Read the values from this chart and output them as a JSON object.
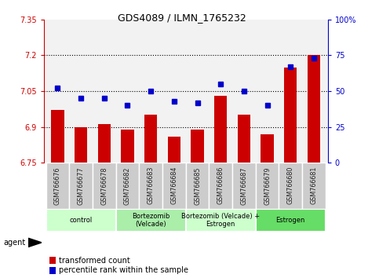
{
  "title": "GDS4089 / ILMN_1765232",
  "samples": [
    "GSM766676",
    "GSM766677",
    "GSM766678",
    "GSM766682",
    "GSM766683",
    "GSM766684",
    "GSM766685",
    "GSM766686",
    "GSM766687",
    "GSM766679",
    "GSM766680",
    "GSM766681"
  ],
  "bar_values": [
    6.97,
    6.9,
    6.91,
    6.89,
    6.95,
    6.86,
    6.89,
    7.03,
    6.95,
    6.87,
    7.15,
    7.2
  ],
  "dot_values": [
    52,
    45,
    45,
    40,
    50,
    43,
    42,
    55,
    50,
    40,
    67,
    73
  ],
  "ylim_left": [
    6.75,
    7.35
  ],
  "ylim_right": [
    0,
    100
  ],
  "yticks_left": [
    6.75,
    6.9,
    7.05,
    7.2,
    7.35
  ],
  "ytick_labels_left": [
    "6.75",
    "6.9",
    "7.05",
    "7.2",
    "7.35"
  ],
  "yticks_right": [
    0,
    25,
    50,
    75,
    100
  ],
  "ytick_labels_right": [
    "0",
    "25",
    "50",
    "75",
    "100%"
  ],
  "hlines": [
    6.9,
    7.05,
    7.2
  ],
  "bar_color": "#cc0000",
  "dot_color": "#0000cc",
  "groups": [
    {
      "label": "control",
      "start": 0,
      "end": 3,
      "color": "#ccffcc"
    },
    {
      "label": "Bortezomib\n(Velcade)",
      "start": 3,
      "end": 6,
      "color": "#aaeeaa"
    },
    {
      "label": "Bortezomib (Velcade) +\nEstrogen",
      "start": 6,
      "end": 9,
      "color": "#ccffcc"
    },
    {
      "label": "Estrogen",
      "start": 9,
      "end": 12,
      "color": "#66dd66"
    }
  ],
  "agent_label": "agent",
  "legend_bar_label": "transformed count",
  "legend_dot_label": "percentile rank within the sample",
  "left_axis_color": "#cc0000",
  "right_axis_color": "#0000cc",
  "plot_bg_color": "#f2f2f2",
  "sample_box_color": "#cccccc",
  "group_border_color": "#ffffff"
}
